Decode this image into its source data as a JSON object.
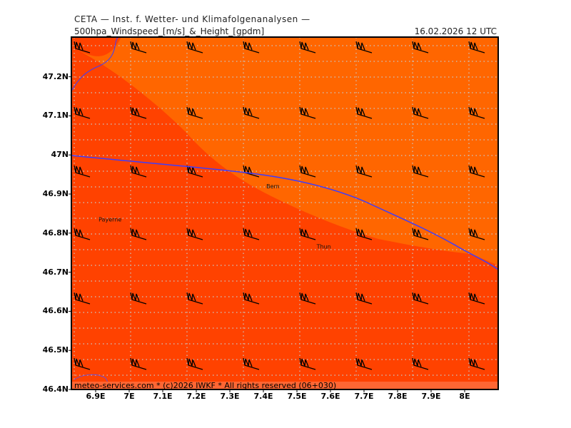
{
  "header": {
    "institute": "CETA — Inst. f. Wetter- und Klimafolgenanalysen —",
    "product": "500hpa_Windspeed_[m/s]_&_Height_[gpdm]",
    "valid_time": "16.02.2026  12 UTC"
  },
  "axes": {
    "lat_labels": [
      "47.2N",
      "47.1N",
      "47N",
      "46.9N",
      "46.8N",
      "46.7N",
      "46.6N",
      "46.5N",
      "46.4N"
    ],
    "lon_labels": [
      "6.9E",
      "7E",
      "7.1E",
      "7.2E",
      "7.3E",
      "7.4E",
      "7.5E",
      "7.6E",
      "7.7E",
      "7.8E",
      "7.9E",
      "8E"
    ]
  },
  "places": [
    {
      "name": "Bern",
      "lon": 7.43,
      "lat": 46.915
    },
    {
      "name": "Payerne",
      "lon": 6.93,
      "lat": 46.83
    },
    {
      "name": "Thun",
      "lon": 7.58,
      "lat": 46.76
    }
  ],
  "footer": "meteo-services.com * (c)2026 IWKF * All rights reserved (06+030)",
  "colors": {
    "zone_light": "#ff6600",
    "zone_dark": "#ff4200",
    "zone_darker": "#fe3c00",
    "height_contour": "#3c3cff",
    "grid": "#c8c8c8",
    "barb": "#000000"
  }
}
